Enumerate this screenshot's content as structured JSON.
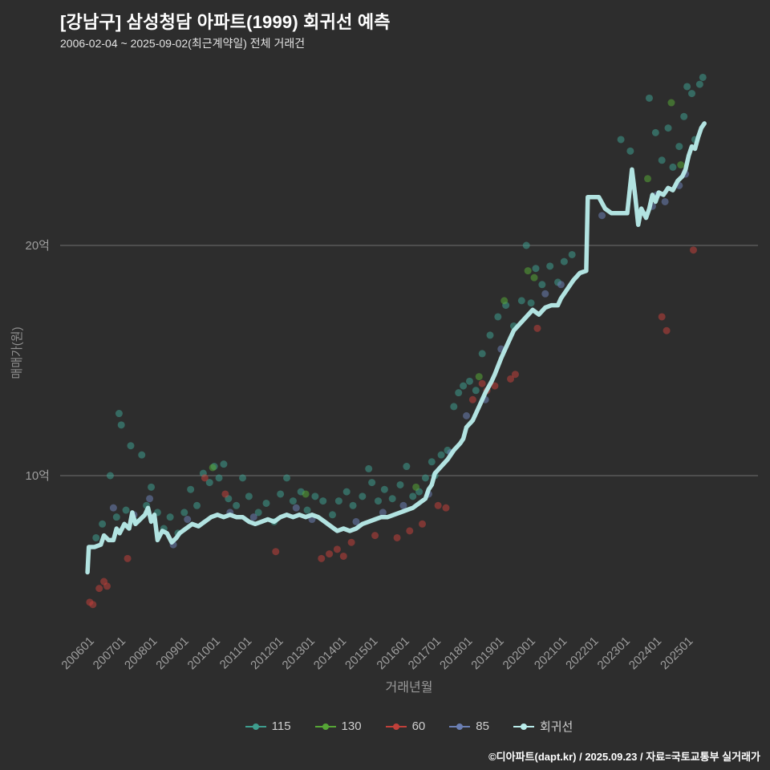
{
  "header": {
    "title": "[강남구] 삼성청담 아파트(1999) 회귀선 예측",
    "subtitle": "2006-02-04 ~ 2025-09-02(최근계약일) 전체 거래건"
  },
  "footer": {
    "text": "©디아파트(dapt.kr) / 2025.09.23 / 자료=국토교통부 실거래가"
  },
  "colors": {
    "background": "#2d2d2d",
    "title": "#ffffff",
    "gridline": "#6e6e6e",
    "tick": "#9e9e9e",
    "series_115": "#3e9d8e",
    "series_130": "#56a636",
    "series_60": "#c0403a",
    "series_85": "#6b7fb3",
    "regression": "#b9edeb"
  },
  "chart_data": {
    "type": "scatter",
    "title": "[강남구] 삼성청담 아파트(1999) 회귀선 예측",
    "subtitle": "2006-02-04 ~ 2025-09-02(최근계약일) 전체 거래건",
    "xlabel": "거래년월",
    "ylabel": "매매가(원)",
    "y_unit": "억",
    "x_range": [
      2005.9,
      2026.2
    ],
    "y_range": [
      4,
      28
    ],
    "grid": "horizontal-only",
    "legend_position": "bottom",
    "x_ticks": [
      "200601",
      "200701",
      "200801",
      "200901",
      "201001",
      "201101",
      "201201",
      "201301",
      "201401",
      "201501",
      "201601",
      "201701",
      "201801",
      "201901",
      "202001",
      "202101",
      "202201",
      "202301",
      "202401",
      "202501"
    ],
    "y_ticks": [
      {
        "value": 10,
        "label": "10억"
      },
      {
        "value": 20,
        "label": "20억"
      }
    ],
    "series": [
      {
        "name": "115",
        "type": "scatter",
        "color": "#3e9d8e",
        "points": [
          [
            2006.35,
            7.3
          ],
          [
            2006.55,
            7.9
          ],
          [
            2006.8,
            10.0
          ],
          [
            2007.0,
            8.2
          ],
          [
            2007.08,
            12.7
          ],
          [
            2007.15,
            12.2
          ],
          [
            2007.3,
            8.5
          ],
          [
            2007.45,
            11.3
          ],
          [
            2007.6,
            8.0
          ],
          [
            2007.8,
            10.9
          ],
          [
            2007.95,
            8.7
          ],
          [
            2008.1,
            9.5
          ],
          [
            2008.3,
            8.4
          ],
          [
            2008.5,
            7.7
          ],
          [
            2008.7,
            8.2
          ],
          [
            2008.95,
            7.5
          ],
          [
            2009.15,
            8.4
          ],
          [
            2009.35,
            9.4
          ],
          [
            2009.55,
            8.7
          ],
          [
            2009.75,
            10.1
          ],
          [
            2009.95,
            9.7
          ],
          [
            2010.1,
            10.4
          ],
          [
            2010.25,
            9.9
          ],
          [
            2010.4,
            10.5
          ],
          [
            2010.55,
            9.0
          ],
          [
            2010.8,
            8.7
          ],
          [
            2011.0,
            9.9
          ],
          [
            2011.2,
            9.1
          ],
          [
            2011.5,
            8.4
          ],
          [
            2011.75,
            8.8
          ],
          [
            2012.0,
            8.0
          ],
          [
            2012.2,
            9.2
          ],
          [
            2012.4,
            9.9
          ],
          [
            2012.6,
            8.9
          ],
          [
            2012.85,
            9.3
          ],
          [
            2013.05,
            8.5
          ],
          [
            2013.3,
            9.1
          ],
          [
            2013.55,
            8.9
          ],
          [
            2013.85,
            8.3
          ],
          [
            2014.05,
            8.9
          ],
          [
            2014.3,
            9.3
          ],
          [
            2014.5,
            8.7
          ],
          [
            2014.8,
            9.1
          ],
          [
            2015.0,
            10.3
          ],
          [
            2015.1,
            9.7
          ],
          [
            2015.3,
            8.9
          ],
          [
            2015.5,
            9.4
          ],
          [
            2015.75,
            9.0
          ],
          [
            2016.0,
            9.6
          ],
          [
            2016.2,
            10.4
          ],
          [
            2016.4,
            9.1
          ],
          [
            2016.6,
            9.3
          ],
          [
            2016.8,
            9.9
          ],
          [
            2017.0,
            10.6
          ],
          [
            2017.1,
            10.0
          ],
          [
            2017.3,
            10.9
          ],
          [
            2017.5,
            11.1
          ],
          [
            2017.7,
            13.0
          ],
          [
            2017.85,
            13.6
          ],
          [
            2018.0,
            13.9
          ],
          [
            2018.2,
            14.1
          ],
          [
            2018.4,
            13.7
          ],
          [
            2018.6,
            15.3
          ],
          [
            2018.85,
            16.1
          ],
          [
            2019.1,
            16.9
          ],
          [
            2019.35,
            17.4
          ],
          [
            2019.6,
            16.5
          ],
          [
            2019.85,
            17.6
          ],
          [
            2020.0,
            20.0
          ],
          [
            2020.15,
            17.5
          ],
          [
            2020.3,
            19.0
          ],
          [
            2020.5,
            18.3
          ],
          [
            2020.75,
            19.1
          ],
          [
            2021.0,
            18.4
          ],
          [
            2021.2,
            19.3
          ],
          [
            2021.45,
            19.6
          ],
          [
            2023.0,
            24.6
          ],
          [
            2023.3,
            24.1
          ],
          [
            2023.9,
            26.4
          ],
          [
            2024.1,
            24.9
          ],
          [
            2024.3,
            23.7
          ],
          [
            2024.5,
            25.1
          ],
          [
            2024.65,
            23.4
          ],
          [
            2024.85,
            24.3
          ],
          [
            2025.0,
            25.6
          ],
          [
            2025.1,
            26.9
          ],
          [
            2025.25,
            26.6
          ],
          [
            2025.35,
            24.6
          ],
          [
            2025.5,
            27.0
          ],
          [
            2025.6,
            27.3
          ]
        ]
      },
      {
        "name": "130",
        "type": "scatter",
        "color": "#56a636",
        "points": [
          [
            2010.05,
            10.35
          ],
          [
            2013.0,
            9.2
          ],
          [
            2016.5,
            9.5
          ],
          [
            2018.5,
            14.3
          ],
          [
            2019.3,
            17.6
          ],
          [
            2020.05,
            18.9
          ],
          [
            2020.25,
            18.6
          ],
          [
            2023.85,
            22.9
          ],
          [
            2024.6,
            26.2
          ],
          [
            2024.9,
            23.5
          ]
        ]
      },
      {
        "name": "60",
        "type": "scatter",
        "color": "#c0403a",
        "points": [
          [
            2006.15,
            4.5
          ],
          [
            2006.25,
            4.4
          ],
          [
            2006.45,
            5.1
          ],
          [
            2006.6,
            5.4
          ],
          [
            2006.7,
            5.2
          ],
          [
            2007.35,
            6.4
          ],
          [
            2009.8,
            9.9
          ],
          [
            2010.45,
            9.2
          ],
          [
            2012.05,
            6.7
          ],
          [
            2013.5,
            6.4
          ],
          [
            2013.75,
            6.6
          ],
          [
            2014.0,
            6.8
          ],
          [
            2014.2,
            6.5
          ],
          [
            2014.45,
            7.1
          ],
          [
            2015.2,
            7.4
          ],
          [
            2015.9,
            7.3
          ],
          [
            2016.3,
            7.6
          ],
          [
            2016.7,
            7.9
          ],
          [
            2017.2,
            8.7
          ],
          [
            2017.45,
            8.6
          ],
          [
            2018.3,
            13.3
          ],
          [
            2018.6,
            14.0
          ],
          [
            2018.75,
            13.7
          ],
          [
            2019.0,
            13.9
          ],
          [
            2019.5,
            14.2
          ],
          [
            2019.65,
            14.4
          ],
          [
            2020.35,
            16.4
          ],
          [
            2024.3,
            16.9
          ],
          [
            2024.45,
            16.3
          ],
          [
            2025.3,
            19.8
          ]
        ]
      },
      {
        "name": "85",
        "type": "scatter",
        "color": "#6b7fb3",
        "points": [
          [
            2006.9,
            8.6
          ],
          [
            2007.55,
            8.3
          ],
          [
            2008.05,
            9.0
          ],
          [
            2008.8,
            7.0
          ],
          [
            2009.25,
            8.1
          ],
          [
            2010.6,
            8.4
          ],
          [
            2011.35,
            8.2
          ],
          [
            2012.7,
            8.6
          ],
          [
            2013.2,
            8.1
          ],
          [
            2014.6,
            8.0
          ],
          [
            2015.45,
            8.4
          ],
          [
            2016.1,
            8.7
          ],
          [
            2016.9,
            9.2
          ],
          [
            2017.6,
            11.0
          ],
          [
            2018.1,
            12.6
          ],
          [
            2018.7,
            13.3
          ],
          [
            2019.2,
            15.5
          ],
          [
            2020.6,
            17.9
          ],
          [
            2021.1,
            18.3
          ],
          [
            2022.4,
            21.3
          ],
          [
            2024.0,
            21.7
          ],
          [
            2024.15,
            22.2
          ],
          [
            2024.4,
            21.9
          ],
          [
            2024.85,
            22.6
          ],
          [
            2025.05,
            23.1
          ]
        ]
      },
      {
        "name": "회귀선",
        "type": "line",
        "color": "#b9edeb",
        "points": [
          [
            2006.08,
            5.8
          ],
          [
            2006.12,
            6.9
          ],
          [
            2006.3,
            6.9
          ],
          [
            2006.5,
            7.0
          ],
          [
            2006.6,
            7.4
          ],
          [
            2006.75,
            7.2
          ],
          [
            2006.9,
            7.2
          ],
          [
            2007.0,
            7.7
          ],
          [
            2007.1,
            7.5
          ],
          [
            2007.25,
            7.9
          ],
          [
            2007.4,
            7.7
          ],
          [
            2007.5,
            8.4
          ],
          [
            2007.6,
            7.9
          ],
          [
            2007.75,
            8.1
          ],
          [
            2007.9,
            8.3
          ],
          [
            2008.0,
            8.6
          ],
          [
            2008.1,
            8.0
          ],
          [
            2008.2,
            8.3
          ],
          [
            2008.3,
            7.2
          ],
          [
            2008.45,
            7.6
          ],
          [
            2008.6,
            7.5
          ],
          [
            2008.75,
            7.1
          ],
          [
            2008.9,
            7.3
          ],
          [
            2009.0,
            7.5
          ],
          [
            2009.2,
            7.7
          ],
          [
            2009.4,
            7.9
          ],
          [
            2009.6,
            7.8
          ],
          [
            2009.8,
            8.0
          ],
          [
            2010.0,
            8.2
          ],
          [
            2010.2,
            8.3
          ],
          [
            2010.4,
            8.2
          ],
          [
            2010.6,
            8.3
          ],
          [
            2010.8,
            8.2
          ],
          [
            2011.0,
            8.2
          ],
          [
            2011.2,
            8.0
          ],
          [
            2011.4,
            7.9
          ],
          [
            2011.6,
            8.0
          ],
          [
            2011.8,
            8.1
          ],
          [
            2012.0,
            8.0
          ],
          [
            2012.2,
            8.2
          ],
          [
            2012.4,
            8.3
          ],
          [
            2012.6,
            8.2
          ],
          [
            2012.8,
            8.3
          ],
          [
            2013.0,
            8.2
          ],
          [
            2013.2,
            8.3
          ],
          [
            2013.4,
            8.2
          ],
          [
            2013.6,
            8.0
          ],
          [
            2013.8,
            7.8
          ],
          [
            2014.0,
            7.6
          ],
          [
            2014.2,
            7.7
          ],
          [
            2014.4,
            7.6
          ],
          [
            2014.6,
            7.7
          ],
          [
            2014.8,
            7.9
          ],
          [
            2015.0,
            8.0
          ],
          [
            2015.2,
            8.1
          ],
          [
            2015.4,
            8.2
          ],
          [
            2015.6,
            8.2
          ],
          [
            2015.8,
            8.3
          ],
          [
            2016.0,
            8.4
          ],
          [
            2016.2,
            8.5
          ],
          [
            2016.4,
            8.6
          ],
          [
            2016.6,
            8.8
          ],
          [
            2016.8,
            9.0
          ],
          [
            2016.9,
            9.4
          ],
          [
            2017.0,
            9.6
          ],
          [
            2017.1,
            10.1
          ],
          [
            2017.3,
            10.4
          ],
          [
            2017.5,
            10.7
          ],
          [
            2017.7,
            11.1
          ],
          [
            2017.9,
            11.4
          ],
          [
            2018.0,
            11.6
          ],
          [
            2018.1,
            12.1
          ],
          [
            2018.3,
            12.4
          ],
          [
            2018.5,
            13.0
          ],
          [
            2018.7,
            13.6
          ],
          [
            2018.9,
            14.1
          ],
          [
            2019.0,
            14.4
          ],
          [
            2019.2,
            15.1
          ],
          [
            2019.4,
            15.7
          ],
          [
            2019.6,
            16.3
          ],
          [
            2019.8,
            16.6
          ],
          [
            2020.0,
            16.9
          ],
          [
            2020.2,
            17.2
          ],
          [
            2020.4,
            17.0
          ],
          [
            2020.6,
            17.3
          ],
          [
            2020.8,
            17.4
          ],
          [
            2021.0,
            17.4
          ],
          [
            2021.1,
            17.7
          ],
          [
            2021.3,
            18.1
          ],
          [
            2021.5,
            18.5
          ],
          [
            2021.7,
            18.8
          ],
          [
            2021.9,
            18.9
          ],
          [
            2021.95,
            22.1
          ],
          [
            2022.3,
            22.1
          ],
          [
            2022.5,
            21.6
          ],
          [
            2022.7,
            21.4
          ],
          [
            2023.0,
            21.4
          ],
          [
            2023.2,
            21.4
          ],
          [
            2023.35,
            23.3
          ],
          [
            2023.45,
            22.2
          ],
          [
            2023.55,
            20.9
          ],
          [
            2023.65,
            21.6
          ],
          [
            2023.8,
            21.2
          ],
          [
            2023.9,
            21.6
          ],
          [
            2024.0,
            22.2
          ],
          [
            2024.1,
            21.9
          ],
          [
            2024.2,
            22.3
          ],
          [
            2024.35,
            22.2
          ],
          [
            2024.5,
            22.5
          ],
          [
            2024.65,
            22.4
          ],
          [
            2024.8,
            22.8
          ],
          [
            2024.95,
            23.0
          ],
          [
            2025.05,
            23.3
          ],
          [
            2025.15,
            23.9
          ],
          [
            2025.25,
            24.3
          ],
          [
            2025.35,
            24.2
          ],
          [
            2025.45,
            24.7
          ],
          [
            2025.55,
            25.1
          ],
          [
            2025.65,
            25.3
          ]
        ]
      }
    ]
  }
}
